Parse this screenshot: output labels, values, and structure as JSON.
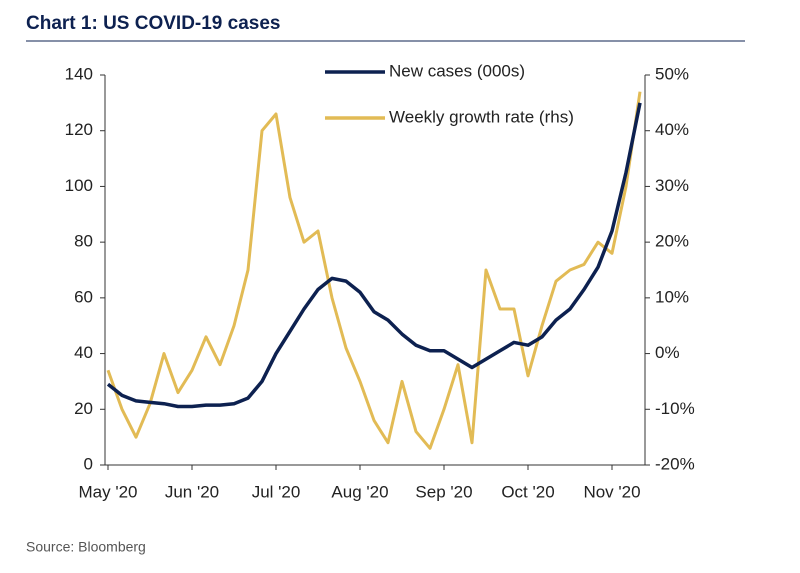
{
  "chart_data": {
    "type": "line",
    "title": "Chart 1: US COVID-19 cases",
    "source": "Source: Bloomberg",
    "categories": [
      "May '20",
      null,
      null,
      null,
      null,
      null,
      "Jun '20",
      null,
      null,
      null,
      null,
      null,
      "Jul '20",
      null,
      null,
      null,
      null,
      null,
      "Aug '20",
      null,
      null,
      null,
      null,
      null,
      "Sep '20",
      null,
      null,
      null,
      null,
      null,
      "Oct '20",
      null,
      null,
      null,
      null,
      null,
      "Nov '20",
      null,
      null
    ],
    "series": [
      {
        "name": "New cases (000s)",
        "color": "#0d2150",
        "values": [
          29,
          25,
          23,
          22.5,
          22,
          21,
          21,
          21.5,
          21.5,
          22,
          24,
          30,
          40,
          48,
          56,
          63,
          67,
          66,
          62,
          55,
          52,
          47,
          43,
          41,
          41,
          38,
          35,
          38,
          41,
          44,
          43,
          46,
          52,
          56,
          63,
          71,
          84,
          105,
          130
        ]
      },
      {
        "name": "Weekly growth rate (rhs)",
        "color": "#e2bb55",
        "axis": "y2",
        "values": [
          -3,
          -10,
          -15,
          -9,
          0,
          -7,
          -3,
          3,
          -2,
          5,
          15,
          40,
          43,
          28,
          20,
          22,
          10,
          1,
          -5,
          -12,
          -16,
          -5,
          -14,
          -17,
          -10,
          -2,
          -16,
          15,
          8,
          8,
          -4,
          5,
          13,
          15,
          16,
          20,
          18,
          30,
          47
        ]
      }
    ],
    "ylim": [
      0,
      140
    ],
    "yticks": [
      0,
      20,
      40,
      60,
      80,
      100,
      120,
      140
    ],
    "y2lim": [
      -20,
      50
    ],
    "y2ticks": [
      {
        "value": -20,
        "label": "-20%"
      },
      {
        "value": -10,
        "label": "-10%"
      },
      {
        "value": 0,
        "label": "0%"
      },
      {
        "value": 10,
        "label": "10%"
      },
      {
        "value": 20,
        "label": "20%"
      },
      {
        "value": 30,
        "label": "30%"
      },
      {
        "value": 40,
        "label": "40%"
      },
      {
        "value": 50,
        "label": "50%"
      }
    ],
    "legend": "top"
  }
}
